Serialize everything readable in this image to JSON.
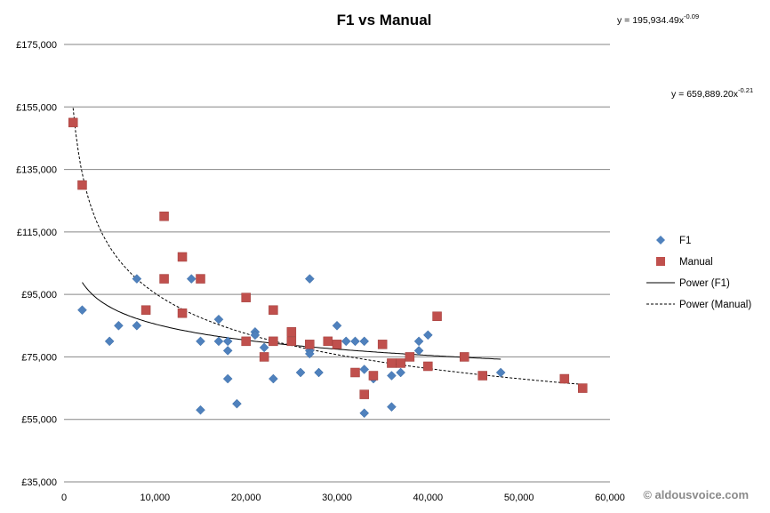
{
  "chart_data": {
    "type": "scatter",
    "title": "F1 vs Manual",
    "xlabel": "",
    "ylabel": "",
    "xlim": [
      0,
      60000
    ],
    "ylim": [
      35000,
      175000
    ],
    "x_ticks": [
      0,
      10000,
      20000,
      30000,
      40000,
      50000,
      60000
    ],
    "x_tick_labels": [
      "0",
      "10,000",
      "20,000",
      "30,000",
      "40,000",
      "50,000",
      "60,000"
    ],
    "y_ticks": [
      35000,
      55000,
      75000,
      95000,
      115000,
      135000,
      155000,
      175000
    ],
    "y_tick_labels": [
      "£35,000",
      "£55,000",
      "£75,000",
      "£95,000",
      "£115,000",
      "£135,000",
      "£155,000",
      "£175,000"
    ],
    "grid": "horizontal",
    "legend_position": "right",
    "series": [
      {
        "name": "F1",
        "marker": "diamond",
        "color": "#4f81bd",
        "points": [
          [
            2000,
            90000
          ],
          [
            5000,
            80000
          ],
          [
            6000,
            85000
          ],
          [
            8000,
            100000
          ],
          [
            8000,
            85000
          ],
          [
            14000,
            100000
          ],
          [
            15000,
            80000
          ],
          [
            15000,
            58000
          ],
          [
            17000,
            87000
          ],
          [
            17000,
            80000
          ],
          [
            18000,
            80000
          ],
          [
            18000,
            77000
          ],
          [
            18000,
            68000
          ],
          [
            19000,
            60000
          ],
          [
            21000,
            83000
          ],
          [
            21000,
            82000
          ],
          [
            22000,
            78000
          ],
          [
            23000,
            68000
          ],
          [
            26000,
            70000
          ],
          [
            27000,
            100000
          ],
          [
            27000,
            77000
          ],
          [
            27000,
            76000
          ],
          [
            28000,
            70000
          ],
          [
            30000,
            85000
          ],
          [
            31000,
            80000
          ],
          [
            32000,
            80000
          ],
          [
            33000,
            80000
          ],
          [
            33000,
            71000
          ],
          [
            33000,
            57000
          ],
          [
            34000,
            68000
          ],
          [
            36000,
            69000
          ],
          [
            36000,
            59000
          ],
          [
            37000,
            70000
          ],
          [
            39000,
            80000
          ],
          [
            39000,
            77000
          ],
          [
            40000,
            82000
          ],
          [
            48000,
            70000
          ]
        ]
      },
      {
        "name": "Manual",
        "marker": "square",
        "color": "#c0504d",
        "points": [
          [
            1000,
            150000
          ],
          [
            2000,
            130000
          ],
          [
            9000,
            90000
          ],
          [
            11000,
            120000
          ],
          [
            11000,
            100000
          ],
          [
            13000,
            107000
          ],
          [
            13000,
            89000
          ],
          [
            15000,
            100000
          ],
          [
            20000,
            94000
          ],
          [
            20000,
            80000
          ],
          [
            22000,
            75000
          ],
          [
            23000,
            90000
          ],
          [
            23000,
            80000
          ],
          [
            25000,
            83000
          ],
          [
            25000,
            80000
          ],
          [
            27000,
            79000
          ],
          [
            29000,
            80000
          ],
          [
            30000,
            79000
          ],
          [
            32000,
            70000
          ],
          [
            33000,
            63000
          ],
          [
            34000,
            69000
          ],
          [
            35000,
            79000
          ],
          [
            36000,
            73000
          ],
          [
            37000,
            73000
          ],
          [
            38000,
            75000
          ],
          [
            40000,
            72000
          ],
          [
            41000,
            88000
          ],
          [
            44000,
            75000
          ],
          [
            46000,
            69000
          ],
          [
            55000,
            68000
          ],
          [
            57000,
            65000
          ]
        ]
      }
    ],
    "trendlines": [
      {
        "name": "Power (F1)",
        "type": "power",
        "a": 195934.49,
        "b": -0.09,
        "x_range": [
          2000,
          48000
        ],
        "style": "solid",
        "color": "#000000",
        "equation_label": "y = 195,934.49x",
        "equation_exponent": "-0.09"
      },
      {
        "name": "Power (Manual)",
        "type": "power",
        "a": 659889.2,
        "b": -0.21,
        "x_range": [
          1000,
          57000
        ],
        "style": "dashed",
        "color": "#000000",
        "equation_label": "y = 659,889.20x",
        "equation_exponent": "-0.21"
      }
    ],
    "legend": [
      {
        "label": "F1",
        "symbol": "diamond",
        "color": "#4f81bd"
      },
      {
        "label": "Manual",
        "symbol": "square",
        "color": "#c0504d"
      },
      {
        "label": "Power (F1)",
        "symbol": "solid-line",
        "color": "#000000"
      },
      {
        "label": "Power (Manual)",
        "symbol": "dashed-line",
        "color": "#000000"
      }
    ]
  },
  "watermark": "© aldousvoice.com"
}
